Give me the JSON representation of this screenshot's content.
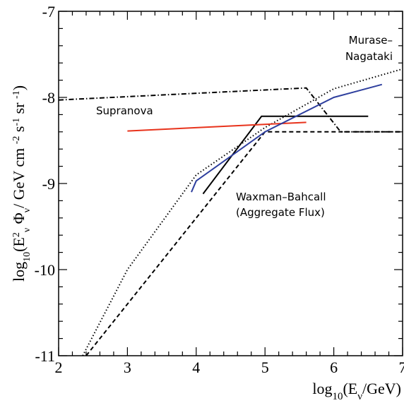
{
  "chart_data": {
    "type": "line",
    "xlabel": "log10(Eν/GeV)",
    "ylabel": "log10(E²ν Φν/ GeV cm⁻² s⁻¹ sr ⁻¹)",
    "xlim": [
      2,
      7
    ],
    "ylim": [
      -11,
      -7
    ],
    "grid": false,
    "x_ticks": [
      "2",
      "3",
      "4",
      "5",
      "6",
      "7"
    ],
    "y_ticks": [
      "-7",
      "-8",
      "-9",
      "-10",
      "-11"
    ],
    "annotations": [
      {
        "text": "Murase–",
        "near": [
          6.5,
          -7.5
        ]
      },
      {
        "text": "Nagataki",
        "near": [
          6.5,
          -7.7
        ]
      },
      {
        "text": "Supranova",
        "near": [
          2.6,
          -8.2
        ]
      },
      {
        "text": "Waxman–Bahcall",
        "near": [
          5.2,
          -9.2
        ]
      },
      {
        "text": "(Aggregate Flux)",
        "near": [
          5.2,
          -9.4
        ]
      }
    ],
    "series": [
      {
        "color": "#000000",
        "style": "dashdot",
        "x": [
          2.0,
          5.6,
          6.1,
          7.0
        ],
        "y": [
          -8.03,
          -7.89,
          -8.4,
          -8.4
        ]
      },
      {
        "color": "#000000",
        "style": "dotted",
        "x": [
          2.35,
          3.0,
          4.0,
          5.0,
          6.0,
          7.0
        ],
        "y": [
          -11.0,
          -10.0,
          -8.9,
          -8.35,
          -7.9,
          -7.67
        ]
      },
      {
        "color": "#000000",
        "style": "dashed",
        "x": [
          2.4,
          5.0,
          7.0
        ],
        "y": [
          -11.0,
          -8.4,
          -8.4
        ]
      },
      {
        "color": "#000000",
        "style": "solid",
        "x": [
          4.1,
          4.95,
          6.5
        ],
        "y": [
          -9.12,
          -8.22,
          -8.22
        ]
      },
      {
        "color": "#e8331c",
        "style": "solid",
        "x": [
          3.0,
          5.6
        ],
        "y": [
          -8.39,
          -8.29
        ]
      },
      {
        "color": "#2e3f9e",
        "style": "solid",
        "x": [
          3.93,
          4.0,
          5.0,
          6.0,
          6.7
        ],
        "y": [
          -9.1,
          -8.97,
          -8.4,
          -8.0,
          -7.85
        ]
      }
    ]
  }
}
